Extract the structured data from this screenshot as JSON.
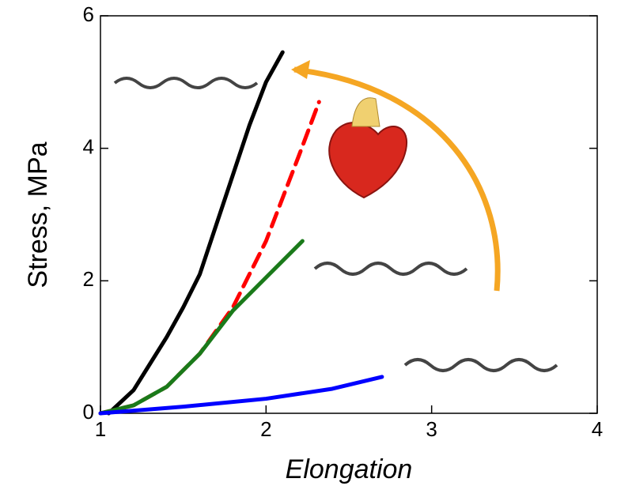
{
  "chart_data": {
    "type": "line",
    "xlabel": "Elongation",
    "ylabel": "Stress, MPa",
    "xlim": [
      1,
      4
    ],
    "xticks": [
      1,
      2,
      3,
      4
    ],
    "ylim": [
      0,
      6
    ],
    "yticks": [
      0,
      2,
      4,
      6
    ],
    "series": [
      {
        "color": "#000000",
        "dash": false,
        "x": [
          1.05,
          1.2,
          1.3,
          1.4,
          1.5,
          1.6,
          1.7,
          1.8,
          1.9,
          2.0,
          2.1
        ],
        "values": [
          0,
          0.35,
          0.75,
          1.15,
          1.6,
          2.1,
          2.85,
          3.6,
          4.35,
          5.0,
          5.45
        ]
      },
      {
        "color": "#ff0000",
        "dash": true,
        "x": [
          1.0,
          1.2,
          1.4,
          1.6,
          1.8,
          2.0,
          2.2,
          2.32
        ],
        "values": [
          0,
          0.12,
          0.4,
          0.9,
          1.6,
          2.6,
          3.9,
          4.7
        ]
      },
      {
        "color": "#1a7a1a",
        "dash": false,
        "x": [
          1.0,
          1.2,
          1.4,
          1.6,
          1.8,
          2.0,
          2.22
        ],
        "values": [
          0,
          0.12,
          0.4,
          0.9,
          1.55,
          2.05,
          2.6
        ]
      },
      {
        "color": "#0000ff",
        "dash": false,
        "x": [
          1.0,
          1.5,
          2.0,
          2.4,
          2.7
        ],
        "values": [
          0,
          0.1,
          0.22,
          0.37,
          0.55
        ]
      }
    ]
  }
}
